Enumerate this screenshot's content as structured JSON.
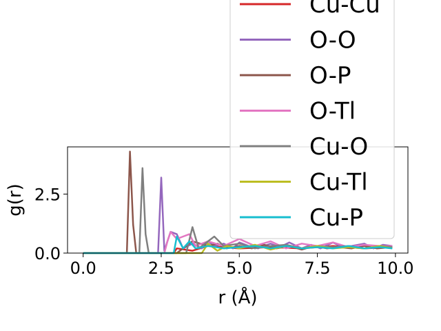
{
  "chart_data": {
    "type": "line",
    "xlabel": "r (Å)",
    "ylabel": "g(r)",
    "xlim": [
      -0.5,
      10.4
    ],
    "ylim": [
      0,
      4.5
    ],
    "x_ticks": [
      {
        "value": 0.0,
        "label": "0.0"
      },
      {
        "value": 2.5,
        "label": "2.5"
      },
      {
        "value": 5.0,
        "label": "5.0"
      },
      {
        "value": 7.5,
        "label": "7.5"
      },
      {
        "value": 10.0,
        "label": "10.0"
      }
    ],
    "y_ticks": [
      {
        "value": 0.0,
        "label": "0.0"
      },
      {
        "value": 2.5,
        "label": "2.5"
      }
    ],
    "grid": false,
    "legend_position": "upper right (extends above the axes)",
    "series": [
      {
        "name": "Cu-Cu",
        "color": "#d62728",
        "x": [
          0,
          2.9,
          3.0,
          3.5,
          4.0,
          5.0,
          6.0,
          7.0,
          8.0,
          9.0,
          9.9
        ],
        "y": [
          0,
          0,
          0.2,
          0.1,
          0.3,
          0.2,
          0.25,
          0.2,
          0.3,
          0.2,
          0.25
        ]
      },
      {
        "name": "O-O",
        "color": "#9467bd",
        "x": [
          0,
          2.4,
          2.5,
          2.6,
          2.7,
          2.8,
          3.0,
          3.2,
          3.5,
          3.8,
          4.0,
          4.2,
          4.5,
          4.8,
          5.0,
          5.3,
          5.6,
          6.0,
          6.3,
          6.6,
          7.0,
          7.3,
          7.6,
          8.0,
          8.3,
          8.6,
          9.0,
          9.3,
          9.6,
          9.9
        ],
        "y": [
          0,
          0,
          3.2,
          0.1,
          0.5,
          0.9,
          0.8,
          0.2,
          0.4,
          0.2,
          0.5,
          0.3,
          0.4,
          0.2,
          0.45,
          0.3,
          0.2,
          0.4,
          0.25,
          0.45,
          0.2,
          0.35,
          0.2,
          0.45,
          0.25,
          0.3,
          0.4,
          0.2,
          0.35,
          0.3
        ]
      },
      {
        "name": "O-P",
        "color": "#8c564b",
        "x": [
          0,
          1.4,
          1.5,
          1.6,
          1.7,
          1.8,
          3.0,
          3.3,
          3.5,
          4.0,
          4.3,
          4.6,
          5.0,
          5.4,
          5.8,
          6.2,
          6.6,
          7.0,
          7.4,
          7.8,
          8.2,
          8.6,
          9.0,
          9.4,
          9.9
        ],
        "y": [
          0,
          0,
          4.3,
          1.2,
          0,
          0,
          0,
          0.3,
          0.5,
          0.3,
          0.4,
          0.2,
          0.3,
          0.2,
          0.35,
          0.2,
          0.3,
          0.15,
          0.3,
          0.2,
          0.25,
          0.2,
          0.3,
          0.2,
          0.25
        ]
      },
      {
        "name": "O-Tl",
        "color": "#e377c2",
        "x": [
          0,
          2.6,
          2.7,
          2.8,
          3.0,
          3.2,
          3.4,
          3.6,
          4.0,
          4.5,
          5.0,
          5.5,
          6.0,
          6.5,
          7.0,
          7.5,
          8.0,
          8.5,
          9.0,
          9.5,
          9.9
        ],
        "y": [
          0,
          0,
          0.5,
          0.9,
          0.6,
          0.7,
          0.8,
          0.3,
          0.5,
          0.3,
          0.6,
          0.3,
          0.5,
          0.2,
          0.4,
          0.3,
          0.45,
          0.25,
          0.35,
          0.3,
          0.3
        ]
      },
      {
        "name": "Cu-O",
        "color": "#7f7f7f",
        "x": [
          0,
          1.8,
          1.9,
          2.0,
          2.1,
          3.3,
          3.5,
          3.7,
          4.2,
          4.5,
          5.0,
          5.5,
          6.0,
          6.5,
          7.0,
          7.5,
          8.0,
          8.5,
          9.0,
          9.5,
          9.9
        ],
        "y": [
          0,
          0,
          3.6,
          0.8,
          0,
          0,
          1.1,
          0.2,
          0.7,
          0.3,
          0.4,
          0.2,
          0.3,
          0.35,
          0.2,
          0.3,
          0.25,
          0.3,
          0.2,
          0.3,
          0.25
        ]
      },
      {
        "name": "Cu-Tl",
        "color": "#bcbd22",
        "x": [
          0,
          3.8,
          4.0,
          4.3,
          4.6,
          5.0,
          5.5,
          6.0,
          6.5,
          7.0,
          7.5,
          8.0,
          8.5,
          9.0,
          9.5,
          9.9
        ],
        "y": [
          0,
          0,
          0.4,
          0.1,
          0.3,
          0.2,
          0.35,
          0.15,
          0.3,
          0.2,
          0.3,
          0.2,
          0.25,
          0.2,
          0.3,
          0.2
        ]
      },
      {
        "name": "Cu-P",
        "color": "#17becf",
        "x": [
          0,
          2.9,
          3.0,
          3.2,
          3.4,
          3.6,
          4.0,
          4.5,
          5.0,
          5.5,
          6.0,
          6.5,
          7.0,
          7.5,
          8.0,
          8.5,
          9.0,
          9.5,
          9.9
        ],
        "y": [
          0,
          0,
          0.7,
          0.2,
          0.5,
          0.2,
          0.3,
          0.2,
          0.25,
          0.3,
          0.2,
          0.3,
          0.2,
          0.25,
          0.2,
          0.3,
          0.2,
          0.25,
          0.2
        ]
      }
    ]
  }
}
